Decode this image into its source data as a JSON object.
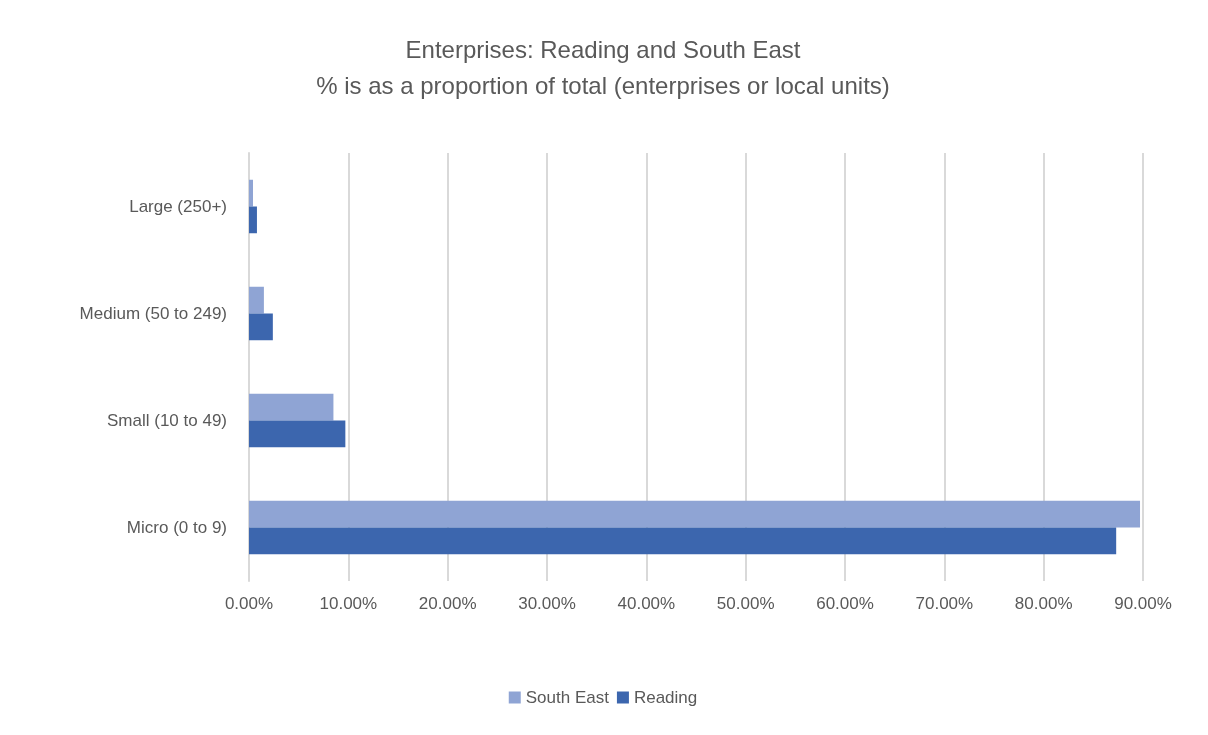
{
  "chart_data": {
    "type": "bar",
    "orientation": "horizontal",
    "title": "Enterprises: Reading and South East\n% is as a proportion of total (enterprises or local units)",
    "categories": [
      "Large (250+)",
      "Medium (50 to 249)",
      "Small (10 to 49)",
      "Micro (0 to 9)"
    ],
    "series": [
      {
        "name": "South East",
        "color": "#8fa4d4",
        "values": [
          0.4,
          1.5,
          8.5,
          89.7
        ]
      },
      {
        "name": "Reading",
        "color": "#3c66ae",
        "values": [
          0.8,
          2.4,
          9.7,
          87.3
        ]
      }
    ],
    "xlim": [
      0,
      90
    ],
    "xticks": [
      {
        "value": 0,
        "label": "0.00%"
      },
      {
        "value": 10,
        "label": "10.00%"
      },
      {
        "value": 20,
        "label": "20.00%"
      },
      {
        "value": 30,
        "label": "30.00%"
      },
      {
        "value": 40,
        "label": "40.00%"
      },
      {
        "value": 50,
        "label": "50.00%"
      },
      {
        "value": 60,
        "label": "60.00%"
      },
      {
        "value": 70,
        "label": "70.00%"
      },
      {
        "value": 80,
        "label": "80.00%"
      },
      {
        "value": 90,
        "label": "90.00%"
      }
    ],
    "grid": "x",
    "legend": "bottom"
  }
}
